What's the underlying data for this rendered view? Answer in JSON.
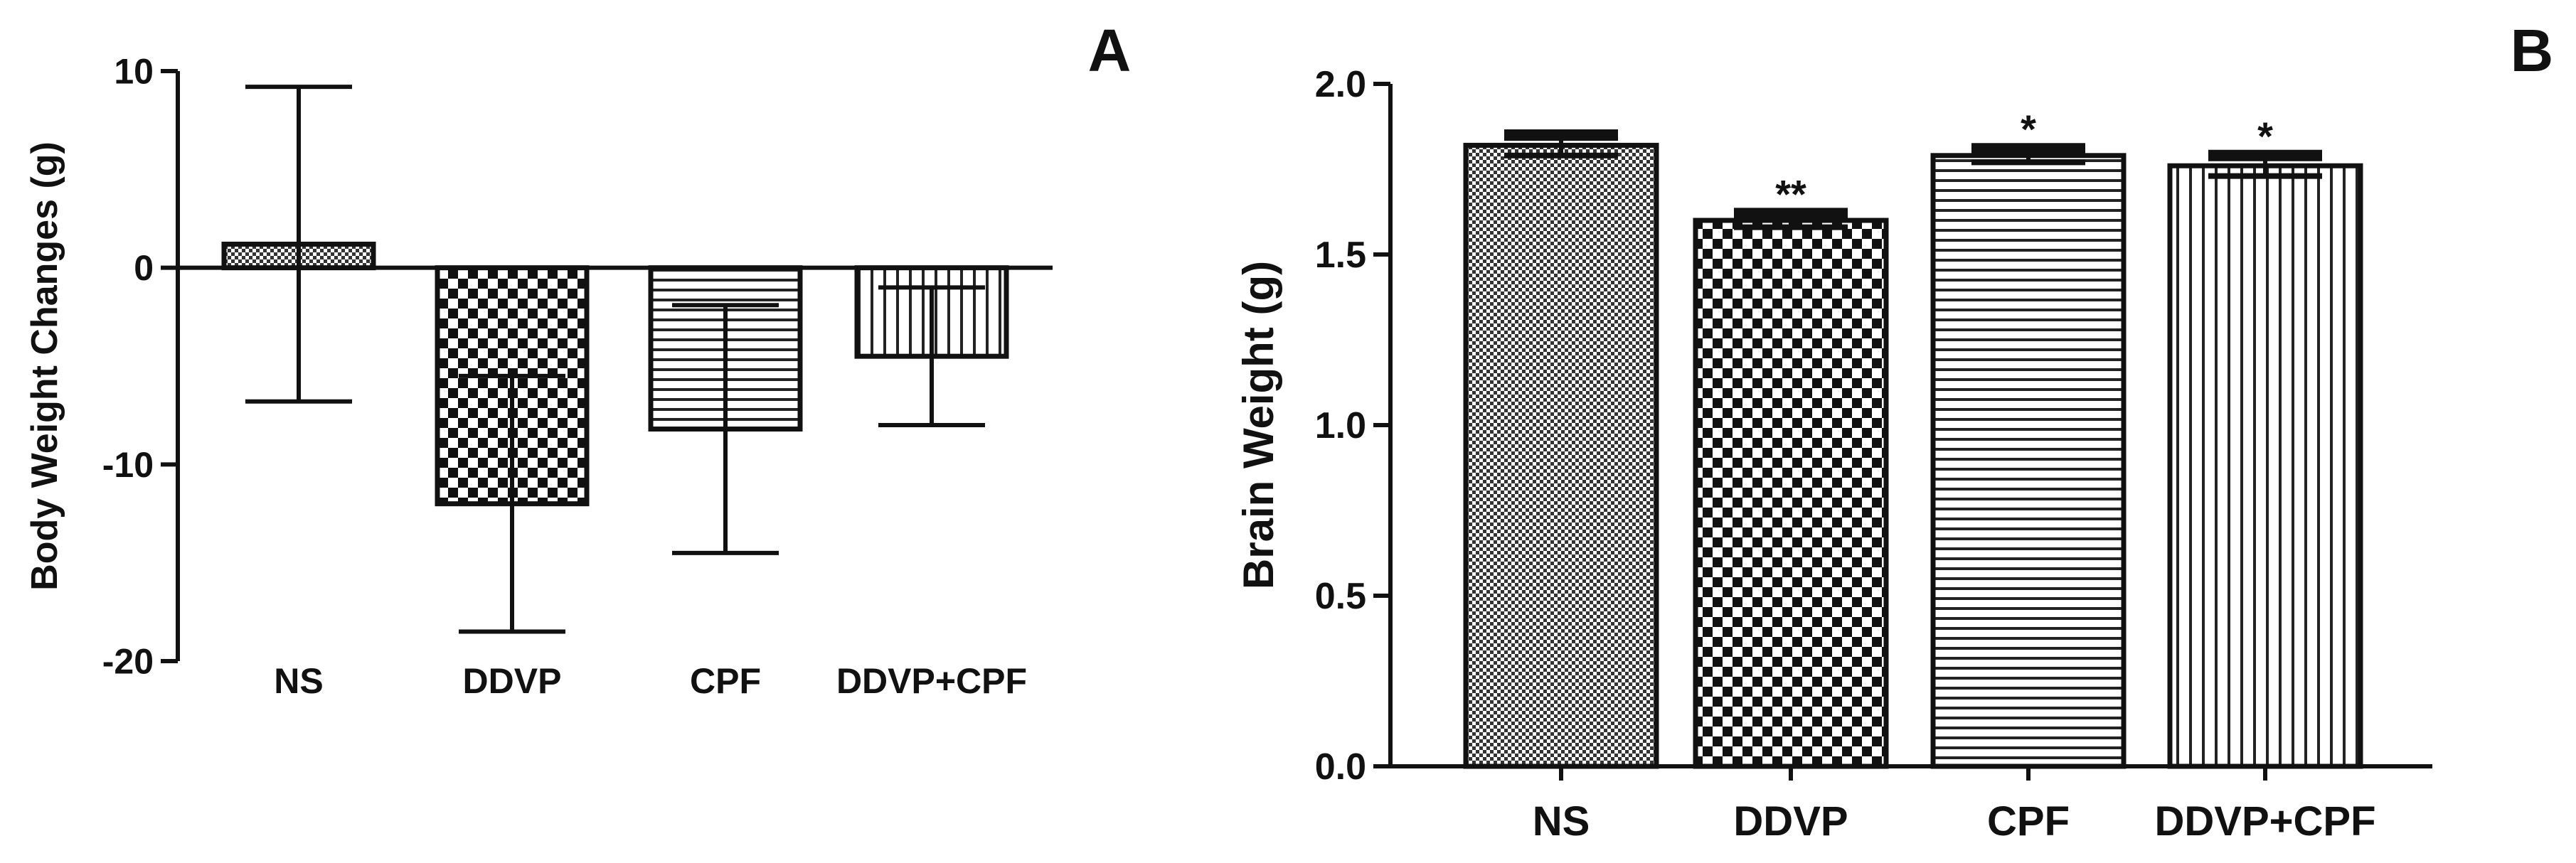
{
  "chart_data": [
    {
      "type": "bar",
      "panel": "A",
      "categories": [
        "NS",
        "DDVP",
        "CPF",
        "DDVP+CPF"
      ],
      "values": [
        1.2,
        -12.0,
        -8.2,
        -4.5
      ],
      "error": [
        8.0,
        6.5,
        6.3,
        3.5
      ],
      "ylabel": "Body Weight Changes (g)",
      "ylim": [
        -20,
        10
      ],
      "yticks": [
        "10",
        "0",
        "-10",
        "-20"
      ],
      "annotations": [
        "",
        "",
        "",
        ""
      ],
      "patterns": [
        "fine-checker",
        "checker",
        "horizontal-lines",
        "vertical-lines"
      ]
    },
    {
      "type": "bar",
      "panel": "B",
      "categories": [
        "NS",
        "DDVP",
        "CPF",
        "DDVP+CPF"
      ],
      "values": [
        1.82,
        1.6,
        1.79,
        1.76
      ],
      "error": [
        0.03,
        0.02,
        0.02,
        0.03
      ],
      "ylabel": "Brain Weight (g)",
      "ylim": [
        0,
        2.0
      ],
      "yticks": [
        "0.0",
        "0.5",
        "1.0",
        "1.5",
        "2.0"
      ],
      "annotations": [
        "",
        "**",
        "*",
        "*"
      ],
      "patterns": [
        "fine-checker",
        "checker",
        "horizontal-lines",
        "vertical-lines"
      ]
    }
  ]
}
